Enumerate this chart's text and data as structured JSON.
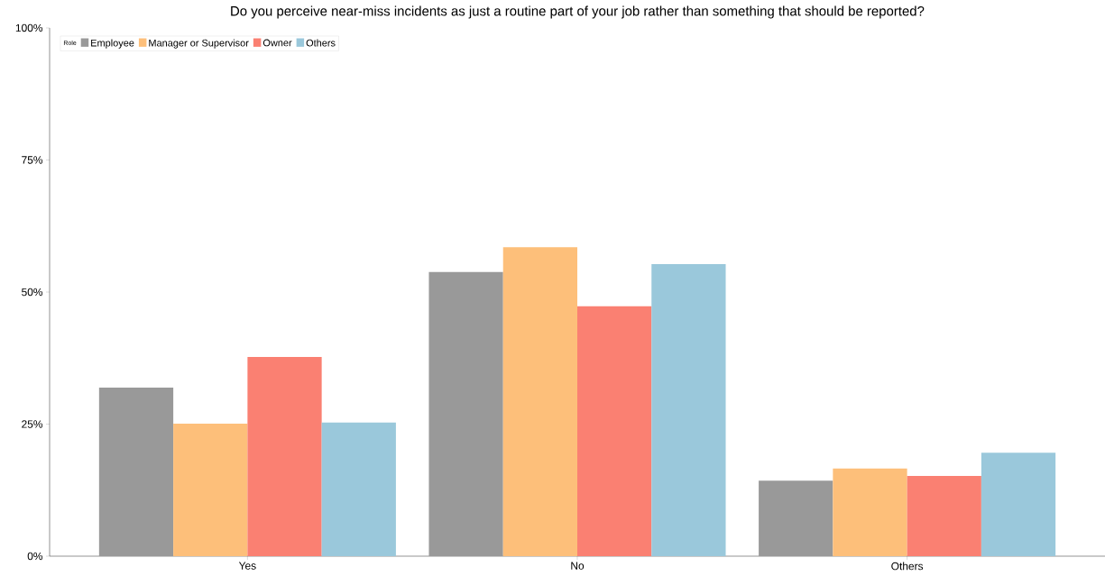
{
  "chart_data": {
    "type": "bar",
    "title": "Do you perceive near-miss incidents as just a routine part of your job rather than something that should be reported?",
    "categories": [
      "Yes",
      "No",
      "Others"
    ],
    "series": [
      {
        "name": "Employee",
        "color": "#999999",
        "values": [
          31.9,
          53.8,
          14.3
        ]
      },
      {
        "name": "Manager or Supervisor",
        "color": "#fdbf7a",
        "values": [
          25.1,
          58.5,
          16.6
        ]
      },
      {
        "name": "Owner",
        "color": "#fa8072",
        "values": [
          37.7,
          47.3,
          15.2
        ]
      },
      {
        "name": "Others",
        "color": "#9ac8db",
        "values": [
          25.3,
          55.3,
          19.6
        ]
      }
    ],
    "legend_title": "Role",
    "legend": "top left",
    "grid": false,
    "ylim": [
      0,
      100
    ],
    "yticks": [
      {
        "value": 0,
        "label": "0%"
      },
      {
        "value": 25,
        "label": "25%"
      },
      {
        "value": 50,
        "label": "50%"
      },
      {
        "value": 75,
        "label": "75%"
      },
      {
        "value": 100,
        "label": "100%"
      }
    ]
  }
}
